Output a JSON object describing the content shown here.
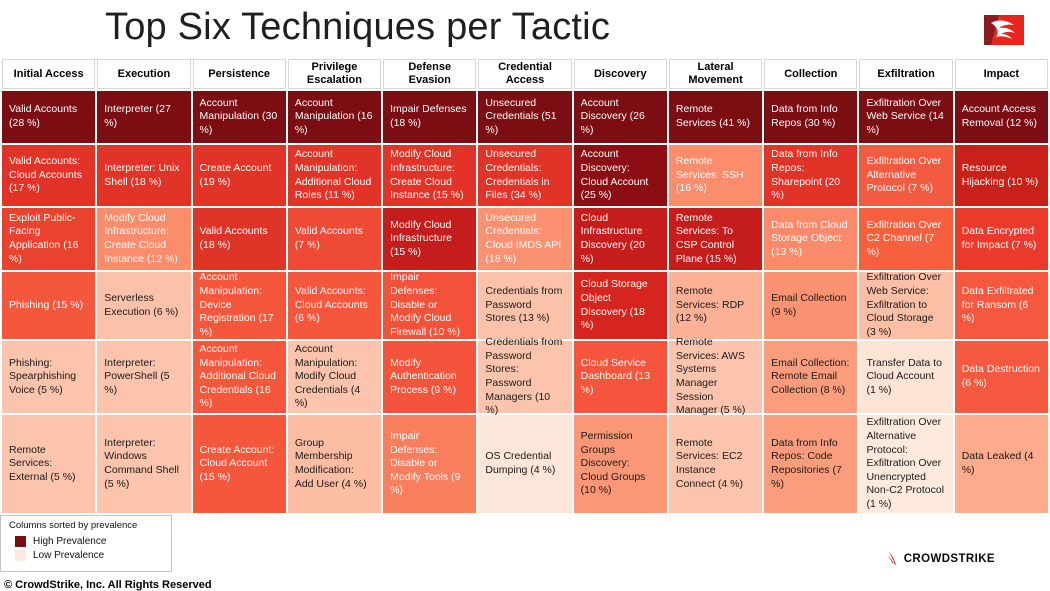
{
  "page": {
    "title": "Top Six Techniques per Tactic",
    "copyright": "© CrowdStrike, Inc. All Rights Reserved",
    "brand_wordmark": "CROWDSTRIKE"
  },
  "legend": {
    "note": "Columns sorted by prevalence",
    "high_label": "High Prevalence",
    "low_label": "Low Prevalence",
    "high_color": "#7b0d13",
    "low_color": "#fdeadd"
  },
  "icons": {
    "corner_logo": "crowdstrike-falcon-logo",
    "brand_logo": "crowdstrike-wordmark-logo"
  },
  "chart_data": {
    "type": "heatmap",
    "title": "Top Six Techniques per Tactic",
    "legend_position": "bottom-left",
    "columns": [
      "Initial Access",
      "Execution",
      "Persistence",
      "Privilege Escalation",
      "Defense Evasion",
      "Credential Access",
      "Discovery",
      "Lateral Movement",
      "Collection",
      "Exfiltration",
      "Impact"
    ],
    "rows": [
      {
        "cells": [
          {
            "text": "Valid Accounts (28 %)",
            "pct": 28,
            "bg": "#7b0d13",
            "fg": "#ffffff"
          },
          {
            "text": "Interpreter (27 %)",
            "pct": 27,
            "bg": "#7b0d13",
            "fg": "#ffffff"
          },
          {
            "text": "Account Manipulation (30 %)",
            "pct": 30,
            "bg": "#7b0d13",
            "fg": "#ffffff"
          },
          {
            "text": "Account Manipulation (16 %)",
            "pct": 16,
            "bg": "#7b0d13",
            "fg": "#ffffff"
          },
          {
            "text": "Impair Defenses (18 %)",
            "pct": 18,
            "bg": "#7b0d13",
            "fg": "#ffffff"
          },
          {
            "text": "Unsecured Credentials (51 %)",
            "pct": 51,
            "bg": "#7b0d13",
            "fg": "#ffffff"
          },
          {
            "text": "Account Discovery (26 %)",
            "pct": 26,
            "bg": "#7b0d13",
            "fg": "#ffffff"
          },
          {
            "text": "Remote Services (41 %)",
            "pct": 41,
            "bg": "#7b0d13",
            "fg": "#ffffff"
          },
          {
            "text": "Data from Info Repos (30 %)",
            "pct": 30,
            "bg": "#7b0d13",
            "fg": "#ffffff"
          },
          {
            "text": "Exfiltration Over Web Service (14 %)",
            "pct": 14,
            "bg": "#7b0d13",
            "fg": "#ffffff"
          },
          {
            "text": "Account Access Removal (12 %)",
            "pct": 12,
            "bg": "#7b0d13",
            "fg": "#ffffff"
          }
        ]
      },
      {
        "cells": [
          {
            "text": "Valid Accounts: Cloud Accounts (17 %)",
            "pct": 17,
            "bg": "#e13327",
            "fg": "#ffffff"
          },
          {
            "text": "Interpreter: Unix Shell (18 %)",
            "pct": 18,
            "bg": "#e13327",
            "fg": "#ffffff"
          },
          {
            "text": "Create Account (19 %)",
            "pct": 19,
            "bg": "#e13327",
            "fg": "#ffffff"
          },
          {
            "text": "Account Manipulation: Additional Cloud Roles (11 %)",
            "pct": 11,
            "bg": "#e13327",
            "fg": "#ffffff"
          },
          {
            "text": "Modify Cloud Infrastructure: Create Cloud Instance (15 %)",
            "pct": 15,
            "bg": "#e13327",
            "fg": "#ffffff"
          },
          {
            "text": "Unsecured Credentials: Credentials in Files (34 %)",
            "pct": 34,
            "bg": "#e13327",
            "fg": "#ffffff"
          },
          {
            "text": "Account Discovery: Cloud Account (25 %)",
            "pct": 25,
            "bg": "#8c0e14",
            "fg": "#ffffff"
          },
          {
            "text": "Remote Services: SSH (16 %)",
            "pct": 16,
            "bg": "#fb8c6c",
            "fg": "#ffffff"
          },
          {
            "text": "Data from Info Repos: Sharepoint (20 %)",
            "pct": 20,
            "bg": "#e13327",
            "fg": "#ffffff"
          },
          {
            "text": "Exfiltration Over Alternative Protocol (7 %)",
            "pct": 7,
            "bg": "#f35b41",
            "fg": "#ffffff"
          },
          {
            "text": "Resource Hijacking (10 %)",
            "pct": 10,
            "bg": "#c92019",
            "fg": "#ffffff"
          }
        ]
      },
      {
        "cells": [
          {
            "text": "Exploit Public-Facing Application (16 %)",
            "pct": 16,
            "bg": "#e9422f",
            "fg": "#ffffff"
          },
          {
            "text": "Modify Cloud Infrastructure: Create Cloud Instance (12 %)",
            "pct": 12,
            "bg": "#fb8c6c",
            "fg": "#ffffff"
          },
          {
            "text": "Valid Accounts (18 %)",
            "pct": 18,
            "bg": "#de3528",
            "fg": "#ffffff"
          },
          {
            "text": "Valid Accounts (7 %)",
            "pct": 7,
            "bg": "#ee4a35",
            "fg": "#ffffff"
          },
          {
            "text": "Modify Cloud Infrastructure (15 %)",
            "pct": 15,
            "bg": "#c41d1c",
            "fg": "#ffffff"
          },
          {
            "text": "Unsecured Credentials: Cloud IMDS API (18 %)",
            "pct": 18,
            "bg": "#fb9170",
            "fg": "#ffffff"
          },
          {
            "text": "Cloud Infrastructure Discovery (20 %)",
            "pct": 20,
            "bg": "#c41d1c",
            "fg": "#ffffff"
          },
          {
            "text": "Remote Services: To CSP Control Plane (15 %)",
            "pct": 15,
            "bg": "#c41d1c",
            "fg": "#ffffff"
          },
          {
            "text": "Data from Cloud Storage Object (13 %)",
            "pct": 13,
            "bg": "#fa8a69",
            "fg": "#ffffff"
          },
          {
            "text": "Exfiltration Over C2 Channel (7 %)",
            "pct": 7,
            "bg": "#f6603f",
            "fg": "#ffffff"
          },
          {
            "text": "Data Encrypted for Impact (7 %)",
            "pct": 7,
            "bg": "#e93a2b",
            "fg": "#ffffff"
          }
        ]
      },
      {
        "cells": [
          {
            "text": "Phishing (15 %)",
            "pct": 15,
            "bg": "#f5573d",
            "fg": "#ffffff"
          },
          {
            "text": "Serverless Execution (6 %)",
            "pct": 6,
            "bg": "#fcc2a9",
            "fg": "#1a1a1a"
          },
          {
            "text": "Account Manipulation: Device Registration (17 %)",
            "pct": 17,
            "bg": "#f5573d",
            "fg": "#ffffff"
          },
          {
            "text": "Valid Accounts: Cloud Accounts (6 %)",
            "pct": 6,
            "bg": "#f5573d",
            "fg": "#ffffff"
          },
          {
            "text": "Impair Defenses: Disable or Modify Cloud Firewall (10 %)",
            "pct": 10,
            "bg": "#f3523a",
            "fg": "#ffffff"
          },
          {
            "text": "Credentials from Password Stores (13 %)",
            "pct": 13,
            "bg": "#fcc2a9",
            "fg": "#1a1a1a"
          },
          {
            "text": "Cloud Storage Object Discovery (18 %)",
            "pct": 18,
            "bg": "#d6251f",
            "fg": "#ffffff"
          },
          {
            "text": "Remote Services: RDP (12 %)",
            "pct": 12,
            "bg": "#fcb197",
            "fg": "#1a1a1a"
          },
          {
            "text": "Email Collection (9 %)",
            "pct": 9,
            "bg": "#fb9372",
            "fg": "#1a1a1a"
          },
          {
            "text": "Exfiltration Over Web Service: Exfiltration to Cloud Storage (3 %)",
            "pct": 3,
            "bg": "#fcbfa5",
            "fg": "#1a1a1a"
          },
          {
            "text": "Data Exfiltrated for Ransom (6 %)",
            "pct": 6,
            "bg": "#f5583e",
            "fg": "#ffffff"
          }
        ]
      },
      {
        "cells": [
          {
            "text": "Phishing: Spearphishing Voice (5 %)",
            "pct": 5,
            "bg": "#fcc4ac",
            "fg": "#1a1a1a"
          },
          {
            "text": "Interpreter: PowerShell (5 %)",
            "pct": 5,
            "bg": "#fcc4ac",
            "fg": "#1a1a1a"
          },
          {
            "text": "Account Manipulation: Additional Cloud Credentials (16 %)",
            "pct": 16,
            "bg": "#f5573d",
            "fg": "#ffffff"
          },
          {
            "text": "Account Manipulation: Modify Cloud Credentials (4 %)",
            "pct": 4,
            "bg": "#fcc4ac",
            "fg": "#1a1a1a"
          },
          {
            "text": "Modify Authentication Process (9 %)",
            "pct": 9,
            "bg": "#f4543b",
            "fg": "#ffffff"
          },
          {
            "text": "Credentials from Password Stores: Password Managers (10 %)",
            "pct": 10,
            "bg": "#fcc4ac",
            "fg": "#1a1a1a"
          },
          {
            "text": "Cloud Service Dashboard (13 %)",
            "pct": 13,
            "bg": "#f4553c",
            "fg": "#ffffff"
          },
          {
            "text": "Remote Services: AWS Systems Manager Session Manager (5 %)",
            "pct": 5,
            "bg": "#fcc4ac",
            "fg": "#1a1a1a"
          },
          {
            "text": "Email Collection: Remote Email Collection (8 %)",
            "pct": 8,
            "bg": "#fb9d7d",
            "fg": "#1a1a1a"
          },
          {
            "text": "Transfer Data to Cloud Account (1 %)",
            "pct": 1,
            "bg": "#fde4d4",
            "fg": "#1a1a1a"
          },
          {
            "text": "Data Destruction (6 %)",
            "pct": 6,
            "bg": "#f5593f",
            "fg": "#ffffff"
          }
        ]
      },
      {
        "cells": [
          {
            "text": "Remote Services: External (5 %)",
            "pct": 5,
            "bg": "#fcc4ac",
            "fg": "#1a1a1a"
          },
          {
            "text": "Interpreter: Windows Command Shell (5 %)",
            "pct": 5,
            "bg": "#fcc4ac",
            "fg": "#1a1a1a"
          },
          {
            "text": "Create Account: Cloud Account (15 %)",
            "pct": 15,
            "bg": "#f5573d",
            "fg": "#ffffff"
          },
          {
            "text": "Group Membership Modification: Add User (4 %)",
            "pct": 4,
            "bg": "#fcbda3",
            "fg": "#1a1a1a"
          },
          {
            "text": "Impair Defenses: Disable or Modify Tools (9 %)",
            "pct": 9,
            "bg": "#f97e5d",
            "fg": "#ffffff"
          },
          {
            "text": "OS Credential Dumping (4 %)",
            "pct": 4,
            "bg": "#fde6d9",
            "fg": "#1a1a1a"
          },
          {
            "text": "Permission Groups Discovery: Cloud Groups (10 %)",
            "pct": 10,
            "bg": "#fb9776",
            "fg": "#1a1a1a"
          },
          {
            "text": "Remote Services: EC2 Instance Connect (4 %)",
            "pct": 4,
            "bg": "#fcc4ac",
            "fg": "#1a1a1a"
          },
          {
            "text": "Data from Info Repos: Code Repositories (7 %)",
            "pct": 7,
            "bg": "#fb9d7d",
            "fg": "#1a1a1a"
          },
          {
            "text": "Exfiltration Over Alternative Protocol: Exfiltration Over Unencrypted Non-C2 Protocol (1 %)",
            "pct": 1,
            "bg": "#fdeadd",
            "fg": "#1a1a1a"
          },
          {
            "text": "Data Leaked (4 %)",
            "pct": 4,
            "bg": "#fcab8d",
            "fg": "#1a1a1a"
          }
        ]
      }
    ]
  }
}
